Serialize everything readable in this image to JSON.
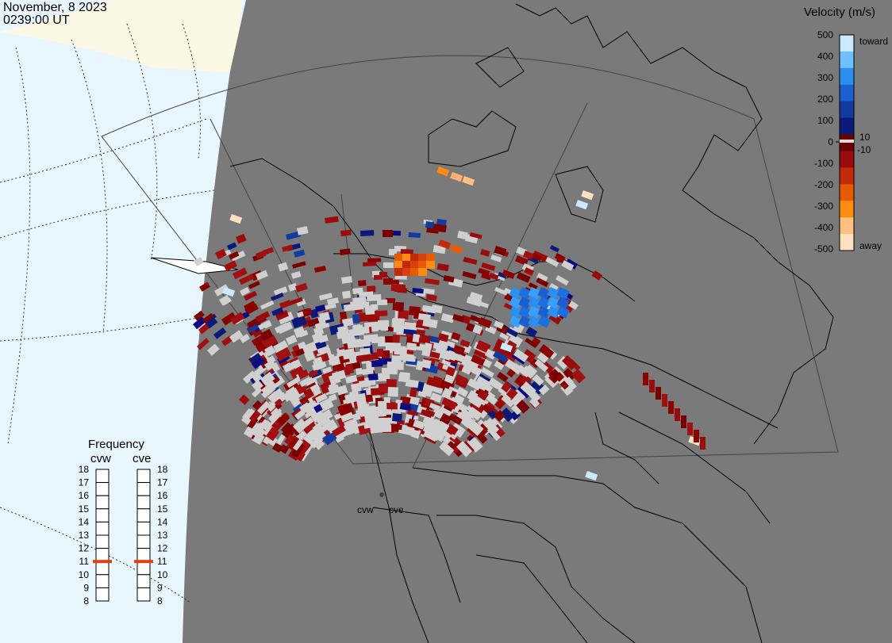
{
  "header": {
    "date": "November, 8 2023",
    "time": "0239:00 UT"
  },
  "colors": {
    "land": "#7a7a7a",
    "ocean": "#e8f6ff",
    "night_boundary": "#fbf9e6",
    "ground_scatter": "#d0d0d0"
  },
  "velocity_scale": {
    "title": "Velocity (m/s)",
    "labels": [
      "500",
      "400",
      "300",
      "200",
      "100",
      "10",
      "0",
      "-10",
      "-100",
      "-200",
      "-300",
      "-400",
      "-500"
    ],
    "toward_label": "toward",
    "away_label": "away",
    "gradient": [
      "#cde9ff",
      "#6ec0ff",
      "#2b8ff0",
      "#1b5fd0",
      "#123a9f",
      "#0a1a7a",
      "#6b0000",
      "#9a0c0c",
      "#c22a0a",
      "#e65a00",
      "#ff8c10",
      "#ffc080",
      "#ffe0c0"
    ]
  },
  "frequency_panel": {
    "title": "Frequency",
    "radars": [
      {
        "name": "cvw",
        "freq": 11
      },
      {
        "name": "cve",
        "freq": 11
      }
    ],
    "ticks": [
      "8",
      "9",
      "10",
      "11",
      "12",
      "13",
      "14",
      "15",
      "16",
      "17",
      "18"
    ],
    "marker_color": "#e04010"
  },
  "radar_sites": [
    "cvw",
    "cve"
  ]
}
